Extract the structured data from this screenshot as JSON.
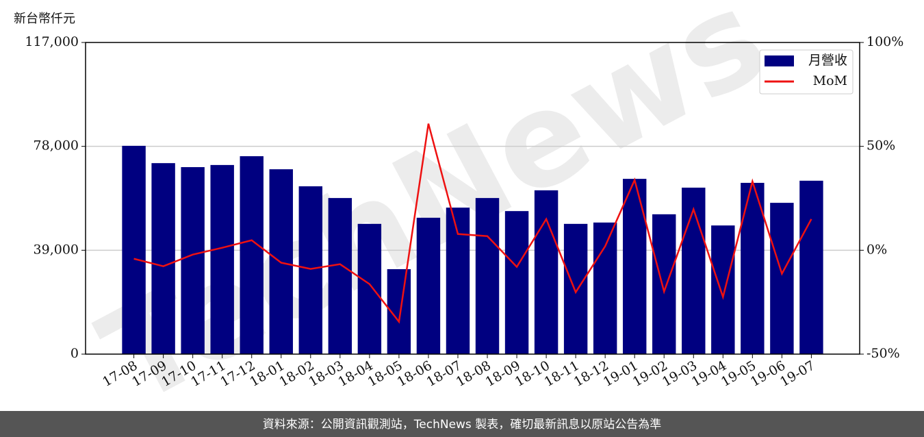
{
  "chart_data": {
    "type": "bar",
    "y_unit_label": "新台幣仟元",
    "watermark": "TechNews",
    "footer": "資料來源：公開資訊觀測站，TechNews 製表，確切最新訊息以原站公告為準",
    "categories": [
      "17-08",
      "17-09",
      "17-10",
      "17-11",
      "17-12",
      "18-01",
      "18-02",
      "18-03",
      "18-04",
      "18-05",
      "18-06",
      "18-07",
      "18-08",
      "18-09",
      "18-10",
      "18-11",
      "18-12",
      "19-01",
      "19-02",
      "19-03",
      "19-04",
      "19-05",
      "19-06",
      "19-07"
    ],
    "series": [
      {
        "name": "月營收",
        "type": "bar",
        "color": "#000080",
        "values": [
          78200,
          71700,
          70200,
          71000,
          74300,
          69400,
          63000,
          58600,
          48900,
          31900,
          51200,
          55000,
          58600,
          53700,
          61500,
          48900,
          49400,
          65800,
          52500,
          62500,
          48300,
          64300,
          56800,
          65100
        ]
      },
      {
        "name": "MoM",
        "type": "line",
        "axis": "y2",
        "color": "#ee1111",
        "values": [
          -4.1,
          -7.7,
          -2.1,
          1.2,
          4.8,
          -6.0,
          -9.0,
          -6.7,
          -16.3,
          -34.4,
          60.9,
          7.8,
          6.8,
          -8.0,
          15.0,
          -20.2,
          1.9,
          33.8,
          -19.9,
          19.7,
          -22.5,
          33.1,
          -11.3,
          15.0
        ]
      }
    ],
    "ylim": [
      0,
      117000
    ],
    "yticks": [
      0,
      {
        "value": 39000,
        "label": "39,000"
      },
      {
        "value": 78000,
        "label": "78,000"
      },
      {
        "value": 117000,
        "label": "117,000"
      }
    ],
    "y2lim": [
      -50,
      100
    ],
    "y2ticks": [
      {
        "value": -50,
        "label": "-50%"
      },
      {
        "value": 0,
        "label": "0%"
      },
      {
        "value": 50,
        "label": "50%"
      },
      {
        "value": 100,
        "label": "100%"
      }
    ],
    "grid": true,
    "legend": "upper right"
  }
}
